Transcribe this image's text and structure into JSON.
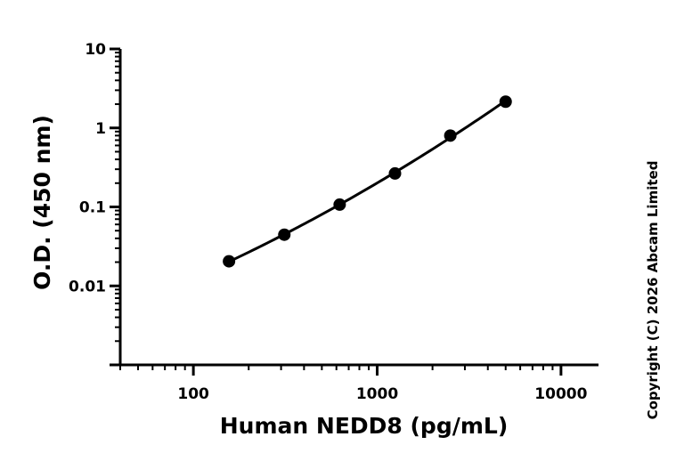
{
  "chart_data": {
    "type": "scatter",
    "title": "",
    "xlabel": "Human NEDD8 (pg/mL)",
    "ylabel": "O.D. (450 nm)",
    "x_scale": "log",
    "y_scale": "log",
    "xlim": [
      40,
      16000
    ],
    "ylim": [
      0.001,
      10
    ],
    "x_ticks": [
      100,
      1000,
      10000
    ],
    "x_tick_labels": [
      "100",
      "1000",
      "10000"
    ],
    "y_ticks": [
      0.01,
      0.1,
      1,
      10
    ],
    "y_tick_labels": [
      "0.01",
      "0.1",
      "1",
      "10"
    ],
    "grid": false,
    "series": [
      {
        "x": [
          156.25,
          312.5,
          625,
          1250,
          2500,
          5000
        ],
        "y": [
          0.0205,
          0.0445,
          0.107,
          0.265,
          0.8,
          2.15
        ],
        "fit_line": true
      }
    ],
    "colors": {
      "marker": "#000000",
      "line": "#000000"
    }
  },
  "copyright": "Copyright (C) 2026 Abcam Limited"
}
